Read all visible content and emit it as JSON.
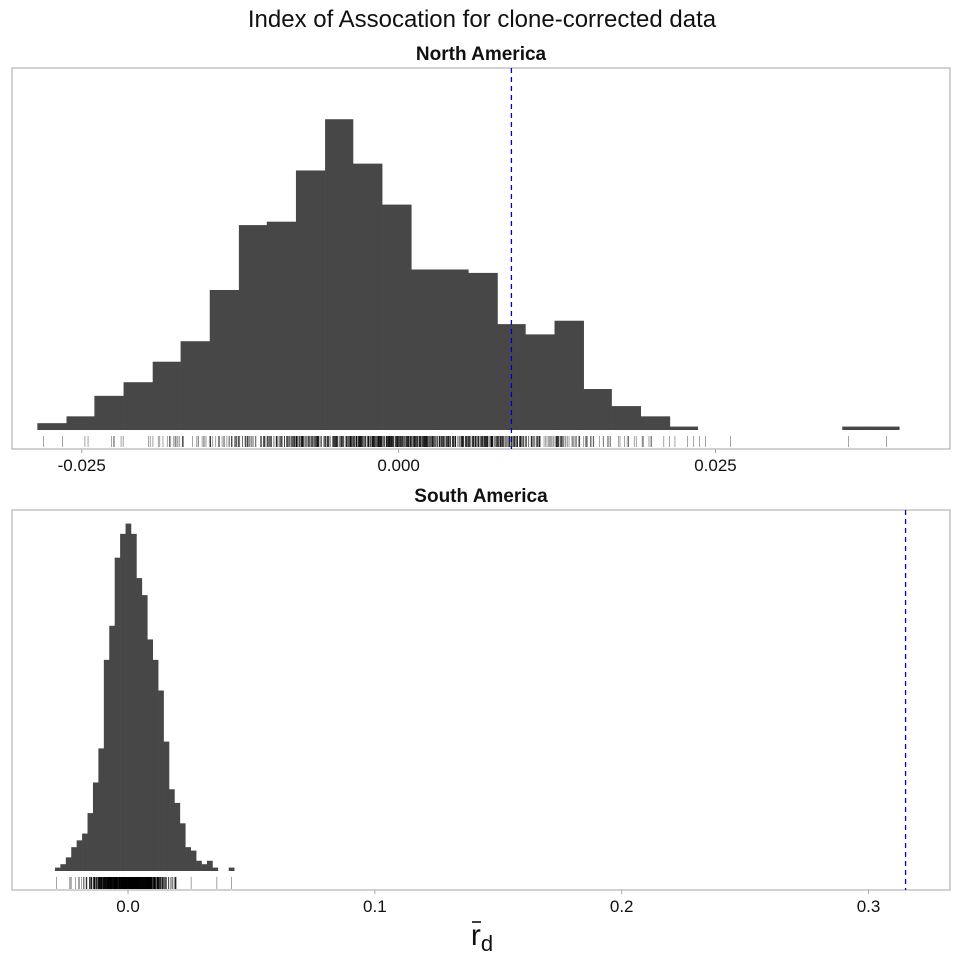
{
  "chart_data": {
    "type": "bar",
    "title": "Index of Assocation for clone-corrected data",
    "xlabel": "r̄d",
    "xlabel_main": "r",
    "xlabel_sub": "d",
    "ylabel": "",
    "colors": {
      "bar": "#474747",
      "observed_line": "#0000cc",
      "rug": "#000000",
      "border": "#a6a6a6"
    },
    "grid": false,
    "panels": [
      {
        "name": "North America",
        "xlim": [
          -0.0305,
          0.0435
        ],
        "ylim": [
          0,
          1.06
        ],
        "xticks": [
          -0.025,
          0.0,
          0.025
        ],
        "xtick_labels": [
          "-0.025",
          "0.000",
          "0.025"
        ],
        "observed": 0.0089,
        "bins": [
          [
            -0.0285,
            -0.0262,
            0.02
          ],
          [
            -0.0262,
            -0.024,
            0.04
          ],
          [
            -0.024,
            -0.0217,
            0.1
          ],
          [
            -0.0217,
            -0.0194,
            0.14
          ],
          [
            -0.0194,
            -0.0172,
            0.2
          ],
          [
            -0.0172,
            -0.0149,
            0.26
          ],
          [
            -0.0149,
            -0.0126,
            0.41
          ],
          [
            -0.0126,
            -0.0104,
            0.6
          ],
          [
            -0.0104,
            -0.0081,
            0.61
          ],
          [
            -0.0081,
            -0.0058,
            0.76
          ],
          [
            -0.0058,
            -0.0036,
            0.91
          ],
          [
            -0.0036,
            -0.0013,
            0.78
          ],
          [
            -0.0013,
            0.001,
            0.66
          ],
          [
            0.001,
            0.0032,
            0.47
          ],
          [
            0.0032,
            0.0055,
            0.47
          ],
          [
            0.0055,
            0.0078,
            0.46
          ],
          [
            0.0078,
            0.01,
            0.31
          ],
          [
            0.01,
            0.0123,
            0.28
          ],
          [
            0.0123,
            0.0146,
            0.32
          ],
          [
            0.0146,
            0.0168,
            0.12
          ],
          [
            0.0168,
            0.0191,
            0.07
          ],
          [
            0.0191,
            0.0214,
            0.04
          ],
          [
            0.0214,
            0.0236,
            0.01
          ],
          [
            0.0236,
            0.0259,
            0.0
          ],
          [
            0.0259,
            0.0282,
            0.0
          ],
          [
            0.0282,
            0.0304,
            0.0
          ],
          [
            0.0304,
            0.0327,
            0.0
          ],
          [
            0.0327,
            0.035,
            0.0
          ],
          [
            0.035,
            0.0372,
            0.01
          ],
          [
            0.0372,
            0.0395,
            0.01
          ]
        ],
        "rug_range": [
          -0.0265,
          0.0255
        ],
        "rug_count": 900,
        "rug_sd": 0.0095,
        "rug_outliers": [
          -0.028,
          -0.0265,
          -0.0245,
          0.0218,
          0.0228,
          0.0242,
          0.0262,
          0.0355,
          0.0385
        ]
      },
      {
        "name": "South America",
        "xlim": [
          -0.047,
          0.333
        ],
        "ylim": [
          0,
          1.06
        ],
        "xticks": [
          0.0,
          0.1,
          0.2,
          0.3
        ],
        "xtick_labels": [
          "0.0",
          "0.1",
          "0.2",
          "0.3"
        ],
        "observed": 0.315,
        "bins": [
          [
            -0.0296,
            -0.0274,
            0.01
          ],
          [
            -0.0274,
            -0.0252,
            0.02
          ],
          [
            -0.0252,
            -0.023,
            0.04
          ],
          [
            -0.023,
            -0.0208,
            0.07
          ],
          [
            -0.0208,
            -0.0186,
            0.09
          ],
          [
            -0.0186,
            -0.0164,
            0.11
          ],
          [
            -0.0164,
            -0.0142,
            0.17
          ],
          [
            -0.0142,
            -0.012,
            0.26
          ],
          [
            -0.012,
            -0.0098,
            0.36
          ],
          [
            -0.0098,
            -0.0076,
            0.62
          ],
          [
            -0.0076,
            -0.0054,
            0.72
          ],
          [
            -0.0054,
            -0.0032,
            0.92
          ],
          [
            -0.0032,
            -0.001,
            0.99
          ],
          [
            -0.001,
            0.0012,
            1.02
          ],
          [
            0.0012,
            0.0034,
            0.99
          ],
          [
            0.0034,
            0.0056,
            0.86
          ],
          [
            0.0056,
            0.0078,
            0.81
          ],
          [
            0.0078,
            0.01,
            0.68
          ],
          [
            0.01,
            0.0122,
            0.62
          ],
          [
            0.0122,
            0.0144,
            0.53
          ],
          [
            0.0144,
            0.0166,
            0.38
          ],
          [
            0.0166,
            0.0188,
            0.24
          ],
          [
            0.0188,
            0.021,
            0.2
          ],
          [
            0.021,
            0.0232,
            0.14
          ],
          [
            0.0232,
            0.0254,
            0.07
          ],
          [
            0.0254,
            0.0276,
            0.06
          ],
          [
            0.0276,
            0.0298,
            0.03
          ],
          [
            0.0298,
            0.032,
            0.02
          ],
          [
            0.032,
            0.0342,
            0.03
          ],
          [
            0.0342,
            0.0364,
            0.01
          ],
          [
            0.0364,
            0.0386,
            0.0
          ],
          [
            0.0386,
            0.0408,
            0.0
          ],
          [
            0.0408,
            0.043,
            0.01
          ]
        ],
        "rug_range": [
          -0.024,
          0.031
        ],
        "rug_count": 700,
        "rug_sd": 0.009,
        "rug_outliers": [
          -0.029,
          0.036,
          0.042
        ]
      }
    ]
  }
}
